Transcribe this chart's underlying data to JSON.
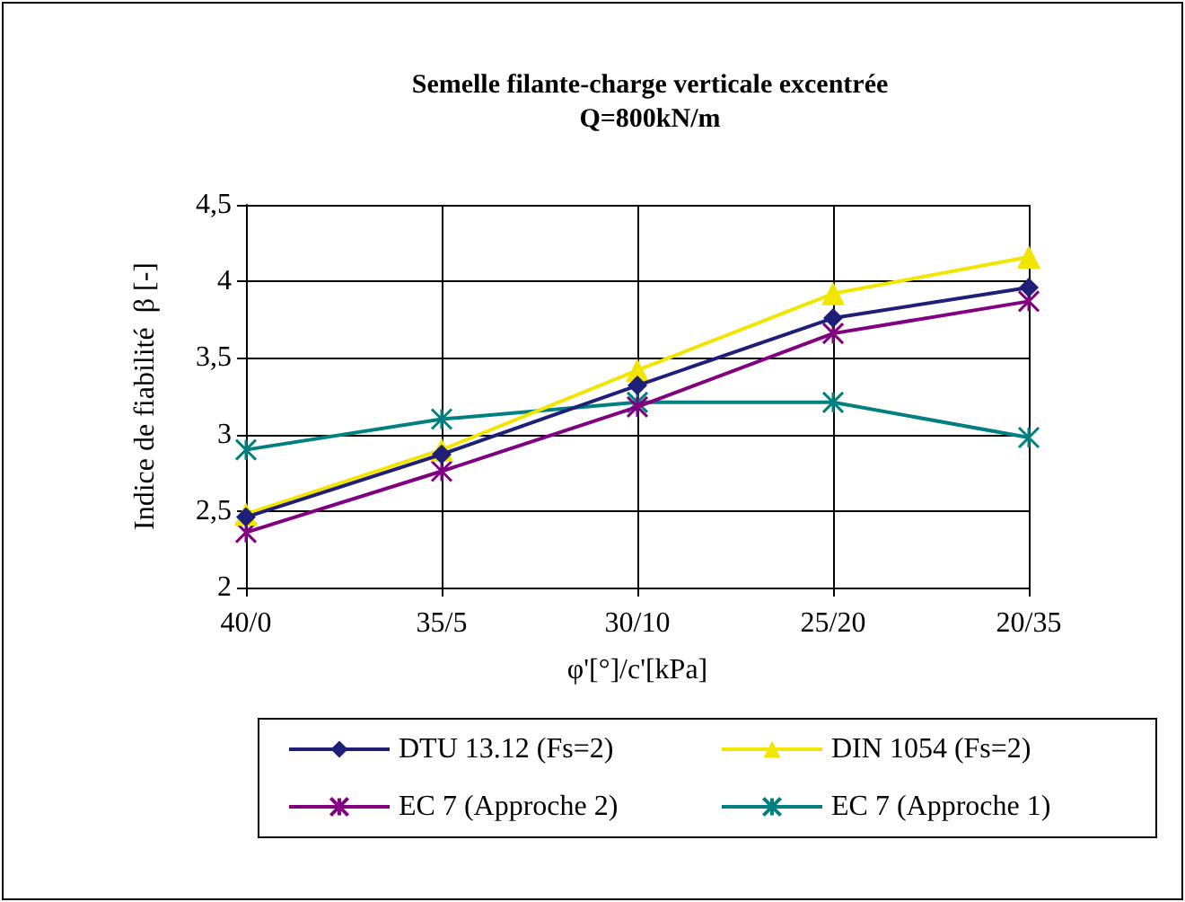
{
  "chart_data": {
    "type": "line",
    "title": "Semelle filante-charge verticale excentrée",
    "subtitle": "Q=800kN/m",
    "xlabel": "φ'[°]/c'[kPa]",
    "ylabel": "Indice de fiabilité  β [-]",
    "categories": [
      "40/0",
      "35/5",
      "30/10",
      "25/20",
      "20/35"
    ],
    "series": [
      {
        "name": "DTU 13.12 (Fs=2)",
        "color": "#1f1f78",
        "marker": "diamond",
        "values": [
          2.46,
          2.87,
          3.32,
          3.76,
          3.96
        ]
      },
      {
        "name": "DIN 1054 (Fs=2)",
        "color": "#f2e600",
        "marker": "triangle",
        "values": [
          2.48,
          2.9,
          3.42,
          3.92,
          4.16
        ]
      },
      {
        "name": "EC 7 (Approche 2)",
        "color": "#800080",
        "marker": "cross",
        "values": [
          2.36,
          2.76,
          3.18,
          3.66,
          3.87
        ]
      },
      {
        "name": "EC 7 (Approche 1)",
        "color": "#008080",
        "marker": "cross",
        "values": [
          2.9,
          3.1,
          3.21,
          3.21,
          2.98
        ]
      }
    ],
    "ylim": [
      2,
      4.5
    ],
    "yticks": [
      {
        "value": 2,
        "label": "2"
      },
      {
        "value": 2.5,
        "label": "2,5"
      },
      {
        "value": 3,
        "label": "3"
      },
      {
        "value": 3.5,
        "label": "3,5"
      },
      {
        "value": 4,
        "label": "4"
      },
      {
        "value": 4.5,
        "label": "4,5"
      }
    ],
    "grid": true,
    "legend": "bottom",
    "line_style": "solid"
  }
}
